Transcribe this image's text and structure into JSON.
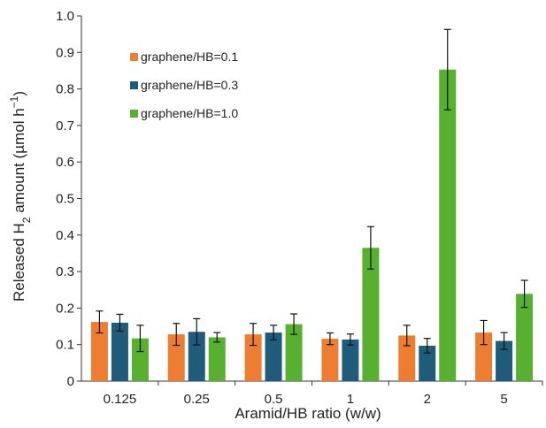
{
  "chart_data": {
    "type": "bar",
    "xlabel": "Aramid/HB ratio (w/w)",
    "ylabel": {
      "prefix": "Released H",
      "subscript": "2",
      "middle": " amount (µmol h",
      "superscript": "−1",
      "suffix": ")"
    },
    "categories": [
      "0.125",
      "0.25",
      "0.5",
      "1",
      "2",
      "5"
    ],
    "ylim": [
      0,
      1.0
    ],
    "yticks": [
      "0",
      "0.1",
      "0.2",
      "0.3",
      "0.4",
      "0.5",
      "0.6",
      "0.7",
      "0.8",
      "0.9",
      "1.0"
    ],
    "grid": false,
    "legend_position": "top-left",
    "series": [
      {
        "name": "graphene/HB=0.1",
        "color": "#ED7D31",
        "values": [
          0.162,
          0.128,
          0.128,
          0.116,
          0.125,
          0.133
        ],
        "errors": [
          0.03,
          0.03,
          0.03,
          0.016,
          0.028,
          0.033
        ]
      },
      {
        "name": "graphene/HB=0.3",
        "color": "#1F5C7A",
        "values": [
          0.16,
          0.135,
          0.133,
          0.114,
          0.097,
          0.11
        ],
        "errors": [
          0.023,
          0.036,
          0.02,
          0.015,
          0.02,
          0.023
        ]
      },
      {
        "name": "graphene/HB=1.0",
        "color": "#58B031",
        "values": [
          0.117,
          0.12,
          0.156,
          0.365,
          0.853,
          0.239
        ],
        "errors": [
          0.036,
          0.013,
          0.028,
          0.058,
          0.11,
          0.037
        ]
      }
    ]
  }
}
